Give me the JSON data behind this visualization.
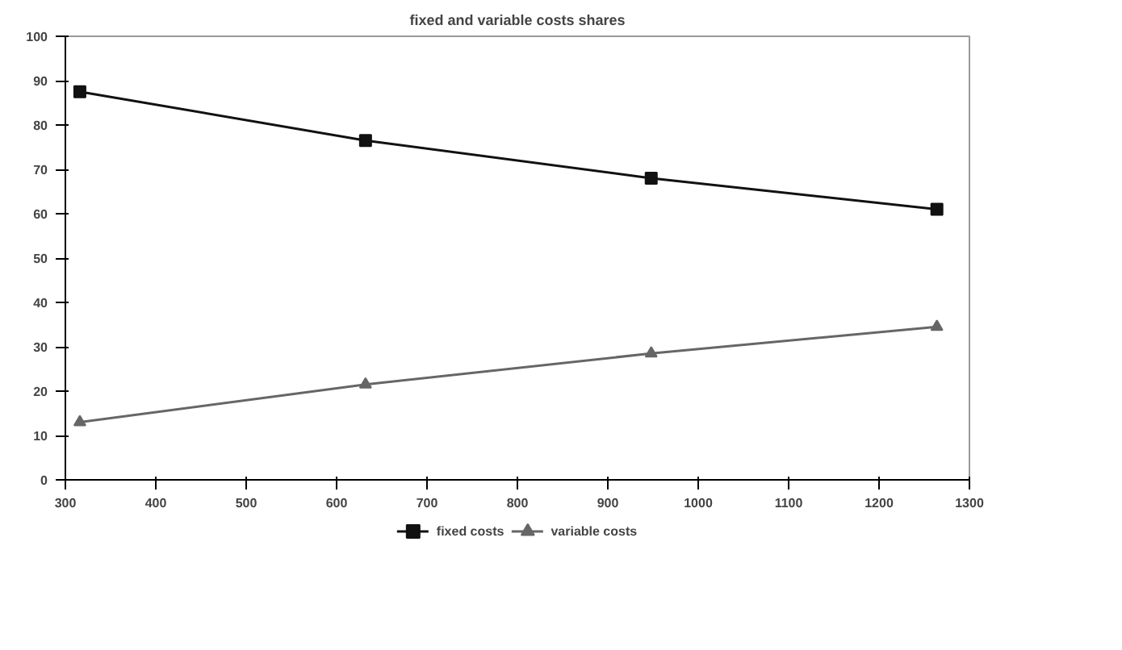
{
  "chart_data": {
    "type": "line",
    "title": "fixed and variable costs shares",
    "x": [
      316,
      632,
      948,
      1264
    ],
    "series": [
      {
        "name": "fixed costs",
        "color": "#111111",
        "marker": "square",
        "values": [
          87.5,
          76.5,
          68,
          61
        ]
      },
      {
        "name": "variable costs",
        "color": "#666666",
        "marker": "triangle",
        "values": [
          13,
          21.5,
          28.5,
          34.5
        ]
      }
    ],
    "xlim": [
      300,
      1300
    ],
    "xticks": [
      300,
      400,
      500,
      600,
      700,
      800,
      900,
      1000,
      1100,
      1200,
      1300
    ],
    "ylim": [
      0,
      100
    ],
    "yticks": [
      0,
      10,
      20,
      30,
      40,
      50,
      60,
      70,
      80,
      90,
      100
    ],
    "grid": false,
    "legend": "bottom",
    "line_style": "solid"
  }
}
